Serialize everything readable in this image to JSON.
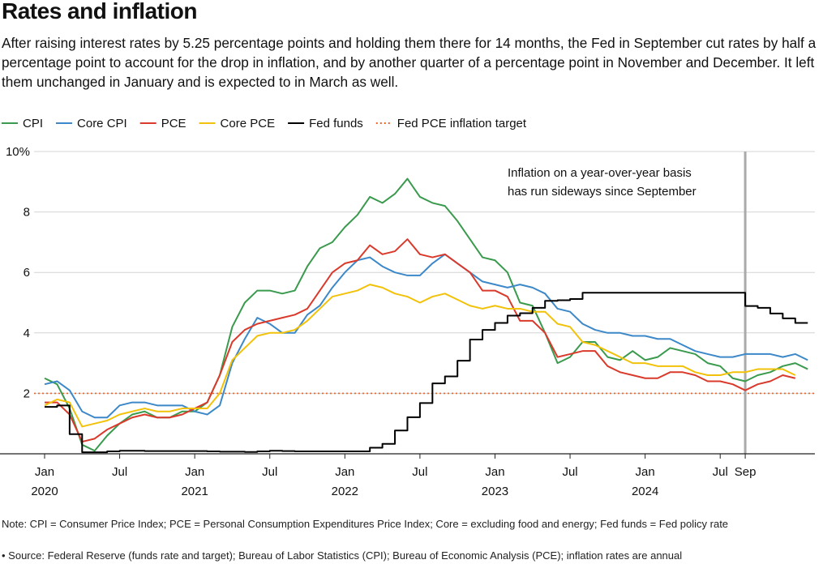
{
  "chart_data": {
    "type": "line",
    "title": "Rates and inflation",
    "subtitle": "After raising interest rates by 5.25 percentage points and holding them there for 14 months, the Fed in September cut rates by half a percentage point to account for the drop in inflation, and by another quarter of a percentage point in November and December. It left them unchanged in January and is expected to in March as well.",
    "x": [
      "2020-01",
      "2020-02",
      "2020-03",
      "2020-04",
      "2020-05",
      "2020-06",
      "2020-07",
      "2020-08",
      "2020-09",
      "2020-10",
      "2020-11",
      "2020-12",
      "2021-01",
      "2021-02",
      "2021-03",
      "2021-04",
      "2021-05",
      "2021-06",
      "2021-07",
      "2021-08",
      "2021-09",
      "2021-10",
      "2021-11",
      "2021-12",
      "2022-01",
      "2022-02",
      "2022-03",
      "2022-04",
      "2022-05",
      "2022-06",
      "2022-07",
      "2022-08",
      "2022-09",
      "2022-10",
      "2022-11",
      "2022-12",
      "2023-01",
      "2023-02",
      "2023-03",
      "2023-04",
      "2023-05",
      "2023-06",
      "2023-07",
      "2023-08",
      "2023-09",
      "2023-10",
      "2023-11",
      "2023-12",
      "2024-01",
      "2024-02",
      "2024-03",
      "2024-04",
      "2024-05",
      "2024-06",
      "2024-07",
      "2024-08",
      "2024-09",
      "2024-10",
      "2024-11",
      "2024-12",
      "2025-01",
      "2025-02"
    ],
    "series": [
      {
        "name": "CPI",
        "color": "#3a9a4d",
        "values": [
          2.5,
          2.3,
          1.5,
          0.3,
          0.1,
          0.6,
          1.0,
          1.3,
          1.4,
          1.2,
          1.2,
          1.4,
          1.4,
          1.7,
          2.6,
          4.2,
          5.0,
          5.4,
          5.4,
          5.3,
          5.4,
          6.2,
          6.8,
          7.0,
          7.5,
          7.9,
          8.5,
          8.3,
          8.6,
          9.1,
          8.5,
          8.3,
          8.2,
          7.7,
          7.1,
          6.5,
          6.4,
          6.0,
          5.0,
          4.9,
          4.0,
          3.0,
          3.2,
          3.7,
          3.7,
          3.2,
          3.1,
          3.4,
          3.1,
          3.2,
          3.5,
          3.4,
          3.3,
          3.0,
          2.9,
          2.5,
          2.4,
          2.6,
          2.7,
          2.9,
          3.0,
          2.8
        ]
      },
      {
        "name": "Core CPI",
        "color": "#3c88c8",
        "values": [
          2.3,
          2.4,
          2.1,
          1.4,
          1.2,
          1.2,
          1.6,
          1.7,
          1.7,
          1.6,
          1.6,
          1.6,
          1.4,
          1.3,
          1.6,
          3.0,
          3.8,
          4.5,
          4.3,
          4.0,
          4.0,
          4.6,
          4.9,
          5.5,
          6.0,
          6.4,
          6.5,
          6.2,
          6.0,
          5.9,
          5.9,
          6.3,
          6.6,
          6.3,
          6.0,
          5.7,
          5.6,
          5.5,
          5.6,
          5.5,
          5.3,
          4.8,
          4.7,
          4.3,
          4.1,
          4.0,
          4.0,
          3.9,
          3.9,
          3.8,
          3.8,
          3.6,
          3.4,
          3.3,
          3.2,
          3.2,
          3.3,
          3.3,
          3.3,
          3.2,
          3.3,
          3.1
        ]
      },
      {
        "name": "PCE",
        "color": "#d93a2b",
        "values": [
          1.7,
          1.7,
          1.3,
          0.4,
          0.5,
          0.8,
          1.0,
          1.2,
          1.3,
          1.2,
          1.2,
          1.3,
          1.5,
          1.7,
          2.6,
          3.7,
          4.1,
          4.3,
          4.4,
          4.5,
          4.6,
          4.8,
          5.4,
          6.0,
          6.3,
          6.4,
          6.9,
          6.6,
          6.7,
          7.1,
          6.6,
          6.5,
          6.6,
          6.3,
          6.0,
          5.4,
          5.4,
          5.2,
          4.4,
          4.4,
          4.0,
          3.2,
          3.3,
          3.4,
          3.4,
          2.9,
          2.7,
          2.6,
          2.5,
          2.5,
          2.7,
          2.7,
          2.6,
          2.4,
          2.4,
          2.3,
          2.1,
          2.3,
          2.4,
          2.6,
          2.5,
          null
        ]
      },
      {
        "name": "Core PCE",
        "color": "#f2c20a",
        "values": [
          1.6,
          1.8,
          1.7,
          0.9,
          1.0,
          1.1,
          1.3,
          1.4,
          1.5,
          1.4,
          1.4,
          1.5,
          1.5,
          1.5,
          2.0,
          3.1,
          3.5,
          3.9,
          4.0,
          4.0,
          4.1,
          4.4,
          4.8,
          5.2,
          5.3,
          5.4,
          5.6,
          5.5,
          5.3,
          5.2,
          5.0,
          5.2,
          5.3,
          5.1,
          4.9,
          4.8,
          4.9,
          4.8,
          4.8,
          4.7,
          4.7,
          4.3,
          4.2,
          3.7,
          3.6,
          3.4,
          3.2,
          3.0,
          3.0,
          2.9,
          2.9,
          2.9,
          2.7,
          2.6,
          2.6,
          2.7,
          2.7,
          2.8,
          2.8,
          2.8,
          2.6,
          null
        ]
      },
      {
        "name": "Fed funds",
        "color": "#000000",
        "step": true,
        "values": [
          1.55,
          1.6,
          0.65,
          0.05,
          0.05,
          0.08,
          0.1,
          0.1,
          0.09,
          0.09,
          0.09,
          0.09,
          0.09,
          0.08,
          0.07,
          0.07,
          0.06,
          0.08,
          0.1,
          0.09,
          0.08,
          0.08,
          0.08,
          0.08,
          0.08,
          0.08,
          0.2,
          0.33,
          0.77,
          1.21,
          1.68,
          2.33,
          2.56,
          3.08,
          3.78,
          4.1,
          4.33,
          4.57,
          4.65,
          4.83,
          5.06,
          5.08,
          5.12,
          5.33,
          5.33,
          5.33,
          5.33,
          5.33,
          5.33,
          5.33,
          5.33,
          5.33,
          5.33,
          5.33,
          5.33,
          5.33,
          4.89,
          4.83,
          4.64,
          4.48,
          4.33,
          4.33
        ]
      }
    ],
    "target": {
      "name": "Fed PCE inflation target",
      "value": 2,
      "color": "#e8652a"
    },
    "highlight_x": "2024-09",
    "annotation": [
      "Inflation on a year-over-year basis",
      "has run sideways since September"
    ],
    "ylim": [
      0,
      10
    ],
    "yticks": [
      {
        "value": 10,
        "label": "10%"
      },
      8,
      6,
      4,
      2
    ],
    "xticks": [
      {
        "value": "2020-01",
        "label": "Jan",
        "year": "2020"
      },
      {
        "value": "2020-07",
        "label": "Jul"
      },
      {
        "value": "2021-01",
        "label": "Jan",
        "year": "2021"
      },
      {
        "value": "2021-07",
        "label": "Jul"
      },
      {
        "value": "2022-01",
        "label": "Jan",
        "year": "2022"
      },
      {
        "value": "2022-07",
        "label": "Jul"
      },
      {
        "value": "2023-01",
        "label": "Jan",
        "year": "2023"
      },
      {
        "value": "2023-07",
        "label": "Jul"
      },
      {
        "value": "2024-01",
        "label": "Jan",
        "year": "2024"
      },
      {
        "value": "2024-07",
        "label": "Jul"
      },
      {
        "value": "2024-09",
        "label": "Sep"
      }
    ],
    "grid": true,
    "note": "Note: CPI = Consumer Price Index; PCE = Personal Consumption Expenditures Price Index; Core = excluding food and energy; Fed funds = Fed policy rate",
    "source": "• Source: Federal Reserve (funds rate and target); Bureau of Labor Statistics (CPI); Bureau of Economic Analysis (PCE); inflation rates are annual"
  }
}
